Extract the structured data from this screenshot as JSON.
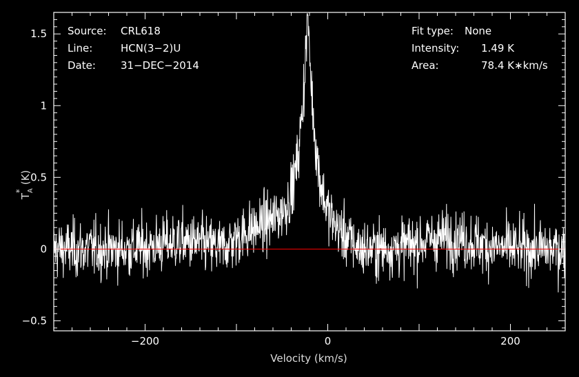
{
  "chart_data": {
    "type": "line",
    "xlabel": "Velocity (km/s)",
    "ylabel": "T_A^* (K)",
    "ylabel_parts": {
      "main": "T",
      "sub": "A",
      "sup": "*",
      "unit": "(K)"
    },
    "xlim": [
      -300,
      260
    ],
    "ylim": [
      -0.57,
      1.65
    ],
    "x_ticks": [
      -200,
      0,
      200
    ],
    "x_tick_labels": [
      "−200",
      "0",
      "200"
    ],
    "y_ticks": [
      -0.5,
      0,
      0.5,
      1,
      1.5
    ],
    "y_tick_labels": [
      "−0.5",
      "0",
      "0.5",
      "1",
      "1.5"
    ],
    "grid": false,
    "baseline": 0,
    "info_left": [
      {
        "label": "Source:",
        "value": "CRL618"
      },
      {
        "label": "Line:",
        "value": "HCN(3−2)U"
      },
      {
        "label": "Date:",
        "value": "31−DEC−2014"
      }
    ],
    "info_right": [
      {
        "label": "Fit type:",
        "value": "None"
      },
      {
        "label": "Intensity:",
        "value": "1.49 K"
      },
      {
        "label": "Area:",
        "value": "78.4 K∗km/s"
      }
    ],
    "profile": {
      "center": -22,
      "peak": 1.49,
      "noise_rms": 0.1,
      "broad_component": {
        "center": -40,
        "amplitude": 0.2,
        "half_width": 75
      },
      "shoulders": [
        {
          "center": -160,
          "amplitude": 0.05,
          "half_width": 35
        },
        {
          "center": 130,
          "amplitude": 0.08,
          "half_width": 40
        }
      ]
    },
    "colors": {
      "spectrum": "#ffffff",
      "baseline": "#ff0000",
      "axes": "#ffffff",
      "background": "#000000"
    }
  }
}
